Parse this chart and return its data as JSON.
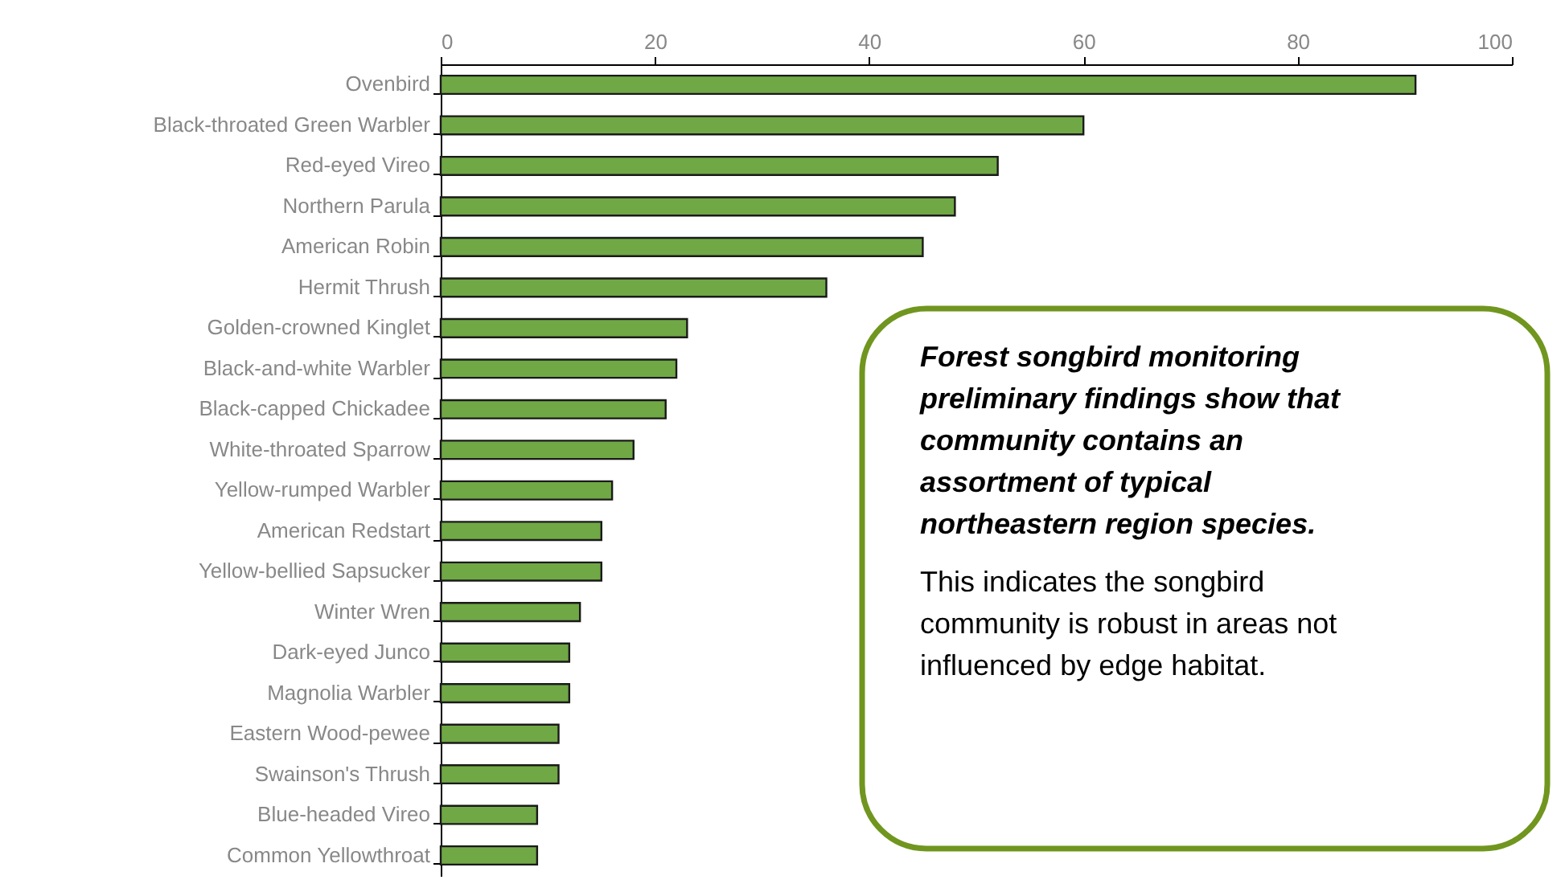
{
  "chart_data": {
    "type": "bar",
    "orientation": "horizontal",
    "categories": [
      "Ovenbird",
      "Black-throated Green Warbler",
      "Red-eyed Vireo",
      "Northern Parula",
      "American Robin",
      "Hermit Thrush",
      "Golden-crowned Kinglet",
      "Black-and-white Warbler",
      "Black-capped Chickadee",
      "White-throated Sparrow",
      "Yellow-rumped Warbler",
      "American Redstart",
      "Yellow-bellied Sapsucker",
      "Winter Wren",
      "Dark-eyed Junco",
      "Magnolia Warbler",
      "Eastern Wood-pewee",
      "Swainson's Thrush",
      "Blue-headed Vireo",
      "Common Yellowthroat"
    ],
    "values": [
      91,
      60,
      52,
      48,
      45,
      36,
      23,
      22,
      21,
      18,
      16,
      15,
      15,
      13,
      12,
      12,
      11,
      11,
      9,
      9
    ],
    "color": "#70a845",
    "xlim": [
      0,
      100
    ],
    "xticks": [
      0,
      20,
      40,
      60,
      80,
      100
    ],
    "grid": false,
    "annotations": [
      "Forest songbird monitoring preliminary findings show that community contains an assortment of typical northeastern region species.",
      "This indicates the songbird community is robust in areas not influenced by edge habitat."
    ]
  }
}
